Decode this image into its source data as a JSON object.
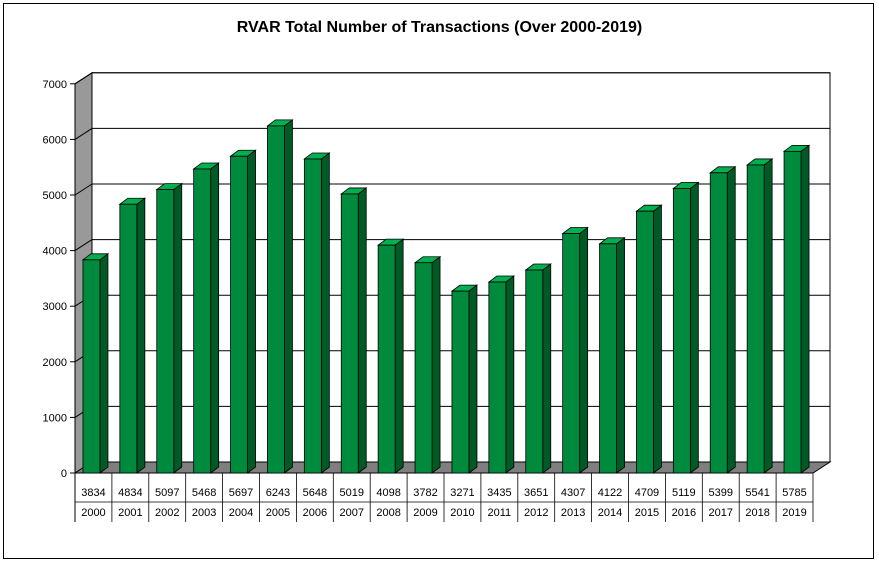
{
  "chart_data": {
    "type": "bar",
    "title": "RVAR Total Number of Transactions (Over 2000-2019)",
    "categories": [
      "2000",
      "2001",
      "2002",
      "2003",
      "2004",
      "2005",
      "2006",
      "2007",
      "2008",
      "2009",
      "2010",
      "2011",
      "2012",
      "2013",
      "2014",
      "2015",
      "2016",
      "2017",
      "2018",
      "2019"
    ],
    "series": [
      {
        "values": [
          3834,
          4834,
          5097,
          5468,
          5697,
          6243,
          5648,
          5019,
          4098,
          3782,
          3271,
          3435,
          3651,
          4307,
          4122,
          4709,
          5119,
          5399,
          5541,
          5785
        ]
      }
    ],
    "data_table_row": [
      "3834",
      "4834",
      "5097",
      "5468",
      "5697",
      "6243",
      "5648",
      "5019",
      "4098",
      "3782",
      "3271",
      "3435",
      "3651",
      "4307",
      "4122",
      "4709",
      "5119",
      "5399",
      "5541",
      "5785"
    ],
    "yticks": [
      "0",
      "1000",
      "2000",
      "3000",
      "4000",
      "5000",
      "6000",
      "7000"
    ],
    "ylim": [
      0,
      7000
    ],
    "grid": true,
    "three_d": true,
    "colors": {
      "bar_front": "#008a3e",
      "bar_side": "#005a25",
      "bar_top": "#00b050",
      "wall": "#999999",
      "floor": "#7f7f7f",
      "grid": "#000000"
    }
  }
}
